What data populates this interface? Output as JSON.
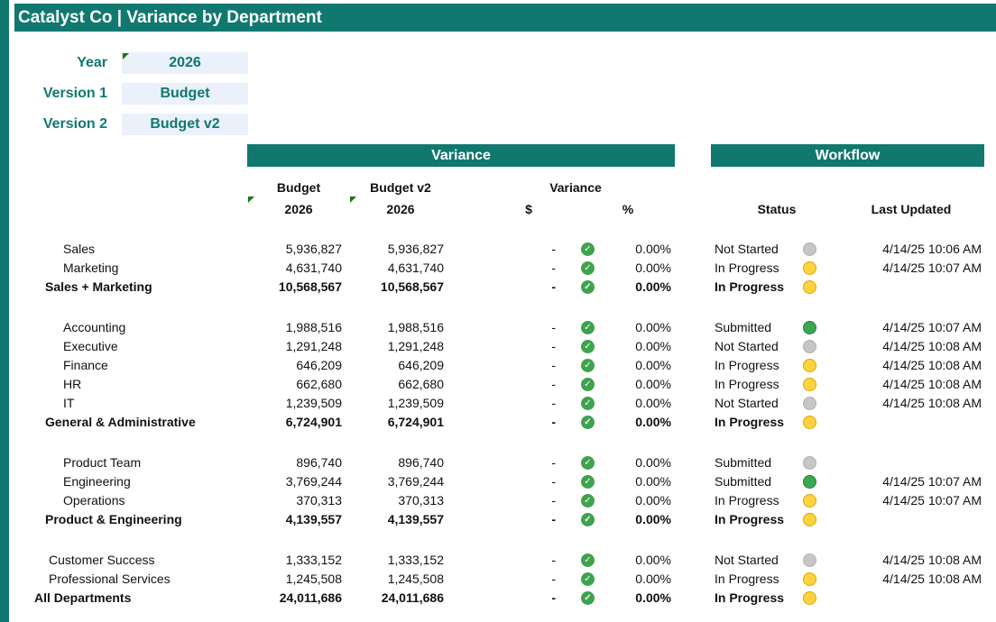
{
  "title": "Catalyst Co | Variance by Department",
  "params": {
    "year_label": "Year",
    "year_value": "2026",
    "version1_label": "Version 1",
    "version1_value": "Budget",
    "version2_label": "Version 2",
    "version2_value": "Budget v2"
  },
  "bands": {
    "variance": "Variance",
    "workflow": "Workflow"
  },
  "headers": {
    "col1_line1": "Budget",
    "col1_line2": "2026",
    "col2_line1": "Budget v2",
    "col2_line2": "2026",
    "variance": "Variance",
    "dollar": "$",
    "pct": "%",
    "status": "Status",
    "last_updated": "Last Updated"
  },
  "rows": [
    {
      "name": "Sales",
      "v1": "5,936,827",
      "v2": "5,936,827",
      "diff": "-",
      "pct": "0.00%",
      "status": "Not Started",
      "dot": "grey",
      "updated": "4/14/25 10:06 AM"
    },
    {
      "name": "Marketing",
      "v1": "4,631,740",
      "v2": "4,631,740",
      "diff": "-",
      "pct": "0.00%",
      "status": "In Progress",
      "dot": "yellow",
      "updated": "4/14/25 10:07 AM"
    },
    {
      "name": "Sales + Marketing",
      "v1": "10,568,567",
      "v2": "10,568,567",
      "diff": "-",
      "pct": "0.00%",
      "status": "In Progress",
      "dot": "yellow",
      "updated": "",
      "total": true
    },
    {
      "name": "Accounting",
      "v1": "1,988,516",
      "v2": "1,988,516",
      "diff": "-",
      "pct": "0.00%",
      "status": "Submitted",
      "dot": "green",
      "updated": "4/14/25 10:07 AM"
    },
    {
      "name": "Executive",
      "v1": "1,291,248",
      "v2": "1,291,248",
      "diff": "-",
      "pct": "0.00%",
      "status": "Not Started",
      "dot": "grey",
      "updated": "4/14/25 10:08 AM"
    },
    {
      "name": "Finance",
      "v1": "646,209",
      "v2": "646,209",
      "diff": "-",
      "pct": "0.00%",
      "status": "In Progress",
      "dot": "yellow",
      "updated": "4/14/25 10:08 AM"
    },
    {
      "name": "HR",
      "v1": "662,680",
      "v2": "662,680",
      "diff": "-",
      "pct": "0.00%",
      "status": "In Progress",
      "dot": "yellow",
      "updated": "4/14/25 10:08 AM"
    },
    {
      "name": "IT",
      "v1": "1,239,509",
      "v2": "1,239,509",
      "diff": "-",
      "pct": "0.00%",
      "status": "Not Started",
      "dot": "grey",
      "updated": "4/14/25 10:08 AM"
    },
    {
      "name": "General & Administrative",
      "v1": "6,724,901",
      "v2": "6,724,901",
      "diff": "-",
      "pct": "0.00%",
      "status": "In Progress",
      "dot": "yellow",
      "updated": "",
      "total": true
    },
    {
      "name": "Product Team",
      "v1": "896,740",
      "v2": "896,740",
      "diff": "-",
      "pct": "0.00%",
      "status": "Submitted",
      "dot": "grey",
      "updated": ""
    },
    {
      "name": "Engineering",
      "v1": "3,769,244",
      "v2": "3,769,244",
      "diff": "-",
      "pct": "0.00%",
      "status": "Submitted",
      "dot": "green",
      "updated": "4/14/25 10:07 AM"
    },
    {
      "name": "Operations",
      "v1": "370,313",
      "v2": "370,313",
      "diff": "-",
      "pct": "0.00%",
      "status": "In Progress",
      "dot": "yellow",
      "updated": "4/14/25 10:07 AM"
    },
    {
      "name": "Product & Engineering",
      "v1": "4,139,557",
      "v2": "4,139,557",
      "diff": "-",
      "pct": "0.00%",
      "status": "In Progress",
      "dot": "yellow",
      "updated": "",
      "total": true
    },
    {
      "name": "Customer Success",
      "v1": "1,333,152",
      "v2": "1,333,152",
      "diff": "-",
      "pct": "0.00%",
      "status": "Not Started",
      "dot": "grey",
      "updated": "4/14/25 10:08 AM"
    },
    {
      "name": "Professional Services",
      "v1": "1,245,508",
      "v2": "1,245,508",
      "diff": "-",
      "pct": "0.00%",
      "status": "In Progress",
      "dot": "yellow",
      "updated": "4/14/25 10:08 AM"
    },
    {
      "name": "All Departments",
      "v1": "24,011,686",
      "v2": "24,011,686",
      "diff": "-",
      "pct": "0.00%",
      "status": "In Progress",
      "dot": "yellow",
      "updated": "",
      "total": true
    }
  ]
}
